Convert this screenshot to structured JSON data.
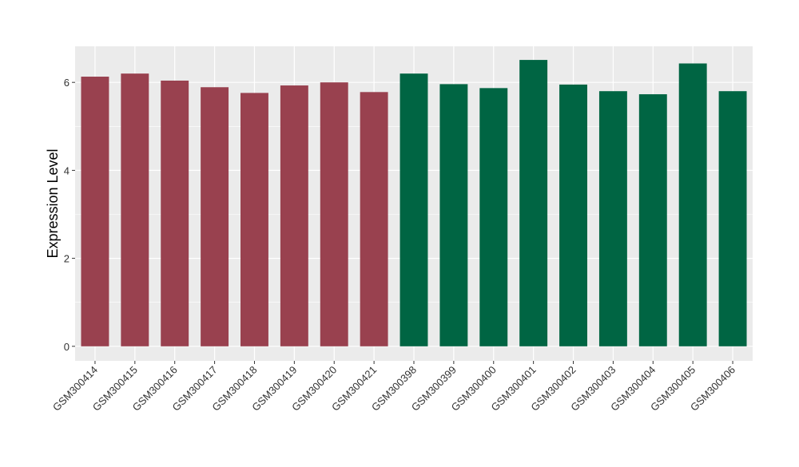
{
  "chart_data": {
    "type": "bar",
    "y_label": "Expression Level",
    "categories": [
      "GSM300414",
      "GSM300415",
      "GSM300416",
      "GSM300417",
      "GSM300418",
      "GSM300419",
      "GSM300420",
      "GSM300421",
      "GSM300398",
      "GSM300399",
      "GSM300400",
      "GSM300401",
      "GSM300402",
      "GSM300403",
      "GSM300404",
      "GSM300405",
      "GSM300406"
    ],
    "values": [
      6.13,
      6.2,
      6.04,
      5.89,
      5.76,
      5.93,
      6.0,
      5.78,
      6.2,
      5.96,
      5.87,
      6.51,
      5.95,
      5.8,
      5.73,
      6.43,
      5.8
    ],
    "colors": [
      "#99414f",
      "#99414f",
      "#99414f",
      "#99414f",
      "#99414f",
      "#99414f",
      "#99414f",
      "#99414f",
      "#006543",
      "#006543",
      "#006543",
      "#006543",
      "#006543",
      "#006543",
      "#006543",
      "#006543",
      "#006543"
    ],
    "ylim": [
      -0.33,
      6.82
    ],
    "yticks": [
      0,
      2,
      4,
      6
    ],
    "minor_yticks": [
      1,
      3,
      5
    ],
    "grid": true
  }
}
